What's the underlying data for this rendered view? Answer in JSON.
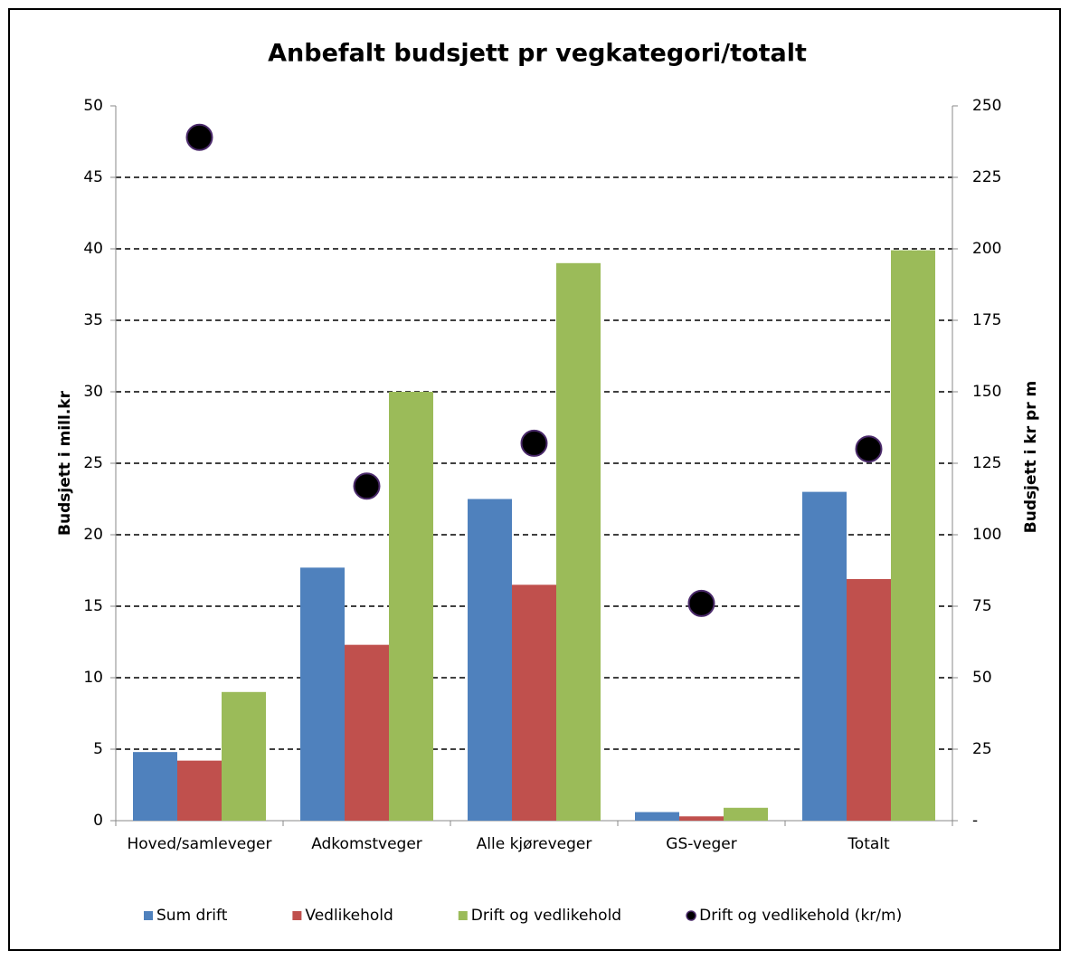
{
  "chart_data": {
    "type": "bar",
    "title": "Anbefalt budsjett pr vegkategori/totalt",
    "y_label": "Budsjett i mill.kr",
    "y2_label": "Budsjett i kr pr m",
    "categories": [
      "Hoved/samleveger",
      "Adkomstveger",
      "Alle kjøreveger",
      "GS-veger",
      "Totalt"
    ],
    "series": [
      {
        "name": "Sum drift",
        "color": "#4f81bd",
        "values": [
          4.8,
          17.7,
          22.5,
          0.6,
          23.0
        ]
      },
      {
        "name": "Vedlikehold",
        "color": "#c0504d",
        "values": [
          4.2,
          12.3,
          16.5,
          0.3,
          16.9
        ]
      },
      {
        "name": "Drift og vedlikehold",
        "color": "#9bbb59",
        "values": [
          9.0,
          30.0,
          39.0,
          0.9,
          39.9
        ]
      },
      {
        "name": "Drift og vedlikehold (kr/m)",
        "type": "scatter",
        "axis": "y2",
        "color": "#000000",
        "values": [
          239,
          117,
          132,
          76,
          130
        ]
      }
    ],
    "ylim": [
      0,
      50
    ],
    "yticks": [
      0,
      5,
      10,
      15,
      20,
      25,
      30,
      35,
      40,
      45,
      50
    ],
    "y2lim": [
      0,
      250
    ],
    "y2ticks": [
      {
        "value": 0,
        "label": "-"
      },
      25,
      50,
      75,
      100,
      125,
      150,
      175,
      200,
      225,
      250
    ],
    "grid": true,
    "legend": "bottom"
  }
}
